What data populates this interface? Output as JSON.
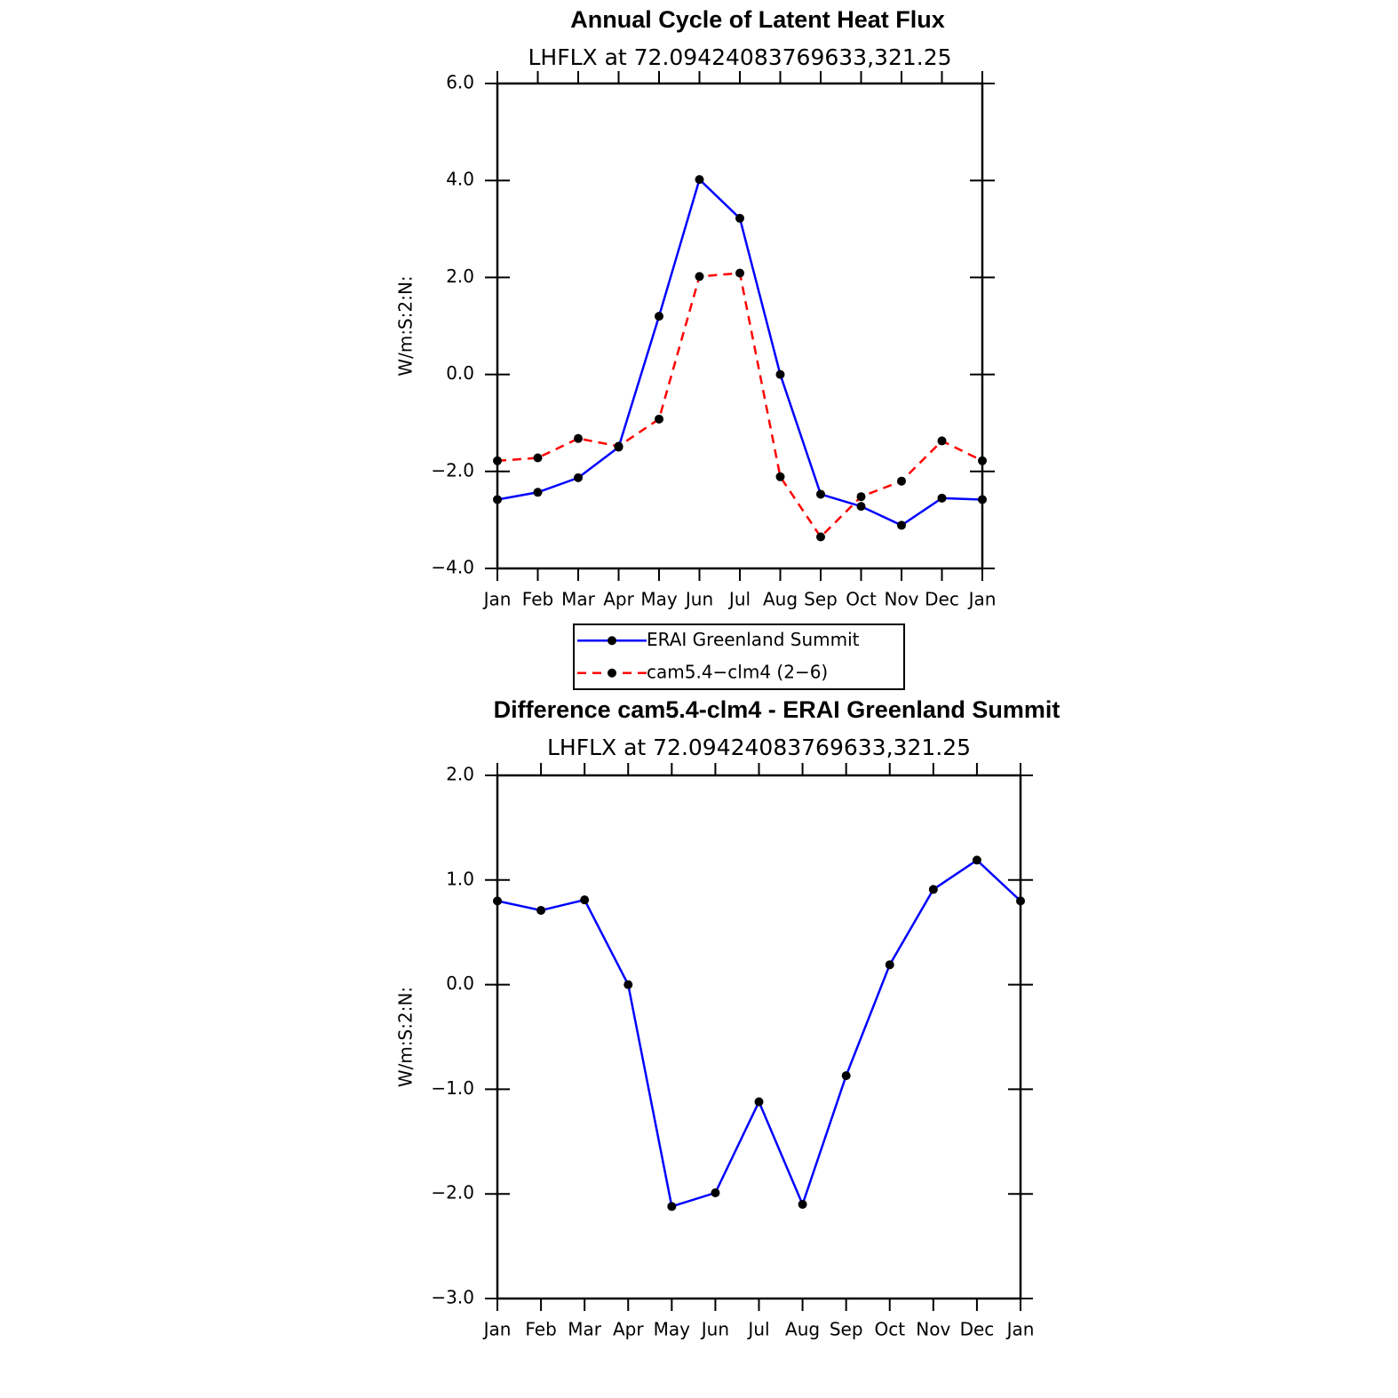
{
  "chart_data": [
    {
      "type": "line",
      "title": "Annual Cycle of Latent Heat Flux",
      "subtitle": "LHFLX at 72.09424083769633,321.25",
      "y_label": "W/m:S:2:N:",
      "categories": [
        "Jan",
        "Feb",
        "Mar",
        "Apr",
        "May",
        "Jun",
        "Jul",
        "Aug",
        "Sep",
        "Oct",
        "Nov",
        "Dec",
        "Jan"
      ],
      "series": [
        {
          "name": "ERAI Greenland Summit",
          "color": "#0000ff",
          "line_style": "solid",
          "values": [
            -2.58,
            -2.43,
            -2.13,
            -1.5,
            1.2,
            4.02,
            3.22,
            0.0,
            -2.47,
            -2.72,
            -3.11,
            -2.55,
            -2.58
          ]
        },
        {
          "name": "cam5.4−clm4 (2−6)",
          "color": "#ff0000",
          "line_style": "dashed",
          "values": [
            -1.78,
            -1.72,
            -1.32,
            -1.48,
            -0.92,
            2.02,
            2.09,
            -2.11,
            -3.35,
            -2.52,
            -2.2,
            -1.37,
            -1.78
          ]
        }
      ],
      "ylim": [
        -4,
        6
      ],
      "yticks": [
        {
          "value": -4,
          "label": "−4.0"
        },
        {
          "value": -2,
          "label": "−2.0"
        },
        {
          "value": 0,
          "label": "0.0"
        },
        {
          "value": 2,
          "label": "2.0"
        },
        {
          "value": 4,
          "label": "4.0"
        },
        {
          "value": 6,
          "label": "6.0"
        }
      ],
      "legend": "bottom"
    },
    {
      "type": "line",
      "title": "Difference cam5.4-clm4 - ERAI Greenland Summit",
      "subtitle": "LHFLX at 72.09424083769633,321.25",
      "y_label": "W/m:S:2:N:",
      "categories": [
        "Jan",
        "Feb",
        "Mar",
        "Apr",
        "May",
        "Jun",
        "Jul",
        "Aug",
        "Sep",
        "Oct",
        "Nov",
        "Dec",
        "Jan"
      ],
      "series": [
        {
          "color": "#0000ff",
          "line_style": "solid",
          "values": [
            0.8,
            0.71,
            0.81,
            0.0,
            -2.12,
            -1.99,
            -1.12,
            -2.1,
            -0.87,
            0.19,
            0.91,
            1.19,
            0.8
          ]
        }
      ],
      "ylim": [
        -3,
        2
      ],
      "yticks": [
        {
          "value": -3,
          "label": "−3.0"
        },
        {
          "value": -2,
          "label": "−2.0"
        },
        {
          "value": -1,
          "label": "−1.0"
        },
        {
          "value": 0,
          "label": "0.0"
        },
        {
          "value": 1,
          "label": "1.0"
        },
        {
          "value": 2,
          "label": "2.0"
        }
      ]
    }
  ]
}
